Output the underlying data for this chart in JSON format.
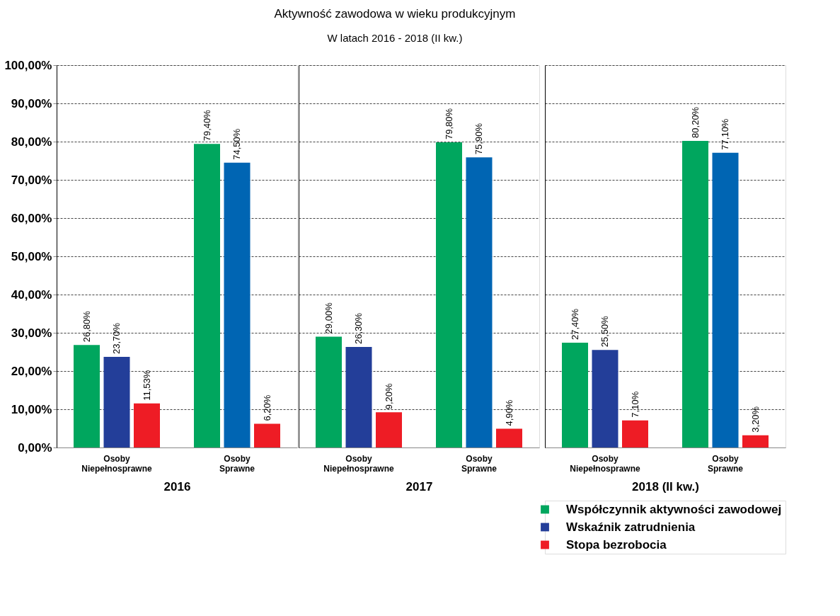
{
  "chart_data": [
    {
      "type": "bar",
      "xlabel": "2016",
      "categories": [
        "Osoby Niepełnosprawne",
        "Osoby Sprawne"
      ],
      "series": [
        {
          "color": "#00a65e",
          "values": [
            26.8,
            79.4
          ],
          "value_labels": [
            "26,80%",
            "79,40%"
          ]
        },
        {
          "colors": [
            "#233e99",
            "#0065b3"
          ],
          "values": [
            23.7,
            74.5
          ],
          "value_labels": [
            "23,70%",
            "74,50%"
          ]
        },
        {
          "color": "#ee1c25",
          "values": [
            11.53,
            6.2
          ],
          "value_labels": [
            "11,53%",
            "6,20%"
          ]
        }
      ],
      "ylim": [
        0,
        100
      ],
      "yticks": [
        {
          "value": 0,
          "label": "0,00%"
        },
        {
          "value": 10,
          "label": "10,00%"
        },
        {
          "value": 20,
          "label": "20,00%"
        },
        {
          "value": 30,
          "label": "30,00%"
        },
        {
          "value": 40,
          "label": "40,00%"
        },
        {
          "value": 50,
          "label": "50,00%"
        },
        {
          "value": 60,
          "label": "60,00%"
        },
        {
          "value": 70,
          "label": "70,00%"
        },
        {
          "value": 80,
          "label": "80,00%"
        },
        {
          "value": 90,
          "label": "90,00%"
        },
        {
          "value": 100,
          "label": "100,00%"
        }
      ],
      "grid": "y"
    },
    {
      "type": "bar",
      "title": "Aktywność zawodowa w wieku produkcyjnym",
      "subtitle": "W latach 2016 - 2018 (II kw.)",
      "xlabel": "2017",
      "categories": [
        "Osoby Niepełnosprawne",
        "Osoby Sprawne"
      ],
      "series": [
        {
          "color": "#00a65e",
          "values": [
            29.0,
            79.8
          ],
          "value_labels": [
            "29,00%",
            "79,80%"
          ]
        },
        {
          "colors": [
            "#233e99",
            "#0065b3"
          ],
          "values": [
            26.3,
            75.9
          ],
          "value_labels": [
            "26,30%",
            "75,90%"
          ]
        },
        {
          "color": "#ee1c25",
          "values": [
            9.2,
            4.9
          ],
          "value_labels": [
            "9,20%",
            "4,90%"
          ]
        }
      ],
      "ylim": [
        0,
        100
      ],
      "yticks": [
        0,
        10,
        20,
        30,
        40,
        50,
        60,
        70,
        80,
        90,
        100
      ],
      "grid": "y",
      "tick_labels": "x"
    },
    {
      "type": "bar",
      "xlabel": "2018 (II kw.)",
      "categories": [
        "Osoby Niepełnosprawne",
        "Osoby Sprawne"
      ],
      "series": [
        {
          "name": "Współczynnik aktywności zawodowej",
          "color": "#00a65e",
          "values": [
            27.4,
            80.2
          ],
          "value_labels": [
            "27,40%",
            "80,20%"
          ]
        },
        {
          "name": "Wskaźnik zatrudnienia",
          "colors": [
            "#233e99",
            "#0065b3"
          ],
          "values": [
            25.5,
            77.1
          ],
          "value_labels": [
            "25,50%",
            "77,10%"
          ]
        },
        {
          "name": "Stopa bezrobocia",
          "color": "#ee1c25",
          "values": [
            7.1,
            3.2
          ],
          "value_labels": [
            "7,10%",
            "3,20%"
          ]
        }
      ],
      "ylim": [
        0,
        100
      ],
      "yticks": [
        0,
        10,
        20,
        30,
        40,
        50,
        60,
        70,
        80,
        90,
        100
      ],
      "grid": "y",
      "tick_labels": "x",
      "legend": "bottom"
    }
  ]
}
